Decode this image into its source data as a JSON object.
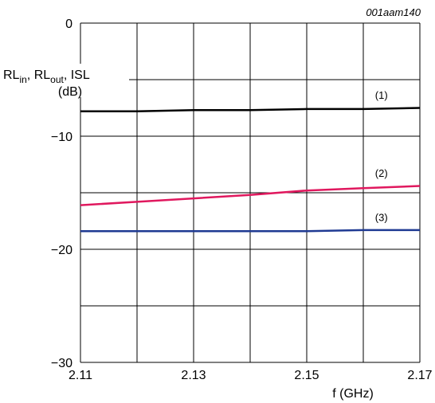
{
  "chart_data": {
    "type": "line",
    "figure_code": "001aam140",
    "xlabel": "f (GHz)",
    "ylabel": {
      "line1": [
        {
          "text": "RL",
          "sub": "in"
        },
        {
          "text": ", RL",
          "sub": "out"
        },
        {
          "text": ", ISL",
          "sub": ""
        }
      ],
      "line2": "(dB)"
    },
    "xlim": [
      2.11,
      2.17
    ],
    "ylim": [
      -30,
      0
    ],
    "x_ticks": [
      2.11,
      2.13,
      2.15,
      2.17
    ],
    "x_tick_labels": [
      "2.11",
      "2.13",
      "2.15",
      "2.17"
    ],
    "y_ticks": [
      0,
      -10,
      -20,
      -30
    ],
    "y_tick_labels": [
      "0",
      "−10",
      "−20",
      "−30"
    ],
    "x_grid": [
      2.11,
      2.12,
      2.13,
      2.14,
      2.15,
      2.16,
      2.17
    ],
    "y_grid": [
      0,
      -5,
      -10,
      -15,
      -20,
      -25,
      -30
    ],
    "grid": true,
    "series": [
      {
        "name": "(1)",
        "color": "#000000",
        "x": [
          2.11,
          2.12,
          2.13,
          2.14,
          2.15,
          2.16,
          2.17
        ],
        "values": [
          -7.8,
          -7.8,
          -7.7,
          -7.7,
          -7.6,
          -7.6,
          -7.5
        ],
        "label_pos": [
          2.1632,
          -6.7
        ]
      },
      {
        "name": "(2)",
        "color": "#e0185e",
        "x": [
          2.11,
          2.12,
          2.13,
          2.14,
          2.15,
          2.16,
          2.17
        ],
        "values": [
          -16.1,
          -15.8,
          -15.5,
          -15.2,
          -14.8,
          -14.6,
          -14.4
        ],
        "label_pos": [
          2.1632,
          -13.6
        ]
      },
      {
        "name": "(3)",
        "color": "#1f3a93",
        "x": [
          2.11,
          2.12,
          2.13,
          2.14,
          2.15,
          2.16,
          2.17
        ],
        "values": [
          -18.4,
          -18.4,
          -18.4,
          -18.4,
          -18.4,
          -18.3,
          -18.3
        ],
        "label_pos": [
          2.1632,
          -17.5
        ]
      }
    ]
  }
}
